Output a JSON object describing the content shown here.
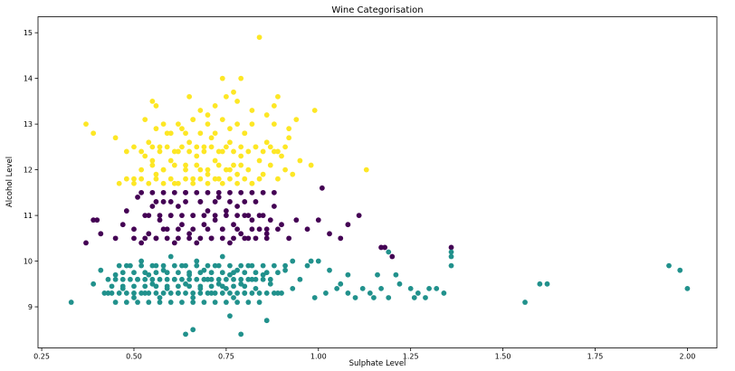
{
  "chart_data": {
    "type": "scatter",
    "title": "Wine Categorisation",
    "xlabel": "Sulphate Level",
    "ylabel": "Alcohol Level",
    "xlim": [
      0.24,
      2.08
    ],
    "ylim": [
      8.1,
      15.35
    ],
    "xticks": [
      0.25,
      0.5,
      0.75,
      1.0,
      1.25,
      1.5,
      1.75,
      2.0
    ],
    "xtick_labels": [
      "0.25",
      "0.50",
      "0.75",
      "1.00",
      "1.25",
      "1.50",
      "1.75",
      "2.00"
    ],
    "yticks": [
      9,
      10,
      11,
      12,
      13,
      14,
      15
    ],
    "ytick_labels": [
      "9",
      "10",
      "11",
      "12",
      "13",
      "14",
      "15"
    ],
    "grid": false,
    "legend": "none",
    "colors": {
      "cluster_high": "#fde725",
      "cluster_mid": "#440154",
      "cluster_low": "#21918c"
    },
    "series": [
      {
        "color": "#fde725",
        "x": [
          0.37,
          0.39,
          0.45,
          0.48,
          0.5,
          0.52,
          0.53,
          0.54,
          0.55,
          0.56,
          0.57,
          0.58,
          0.59,
          0.6,
          0.61,
          0.62,
          0.63,
          0.64,
          0.65,
          0.66,
          0.67,
          0.68,
          0.69,
          0.7,
          0.71,
          0.72,
          0.73,
          0.74,
          0.75,
          0.76,
          0.77,
          0.78,
          0.79,
          0.8,
          0.81,
          0.82,
          0.83,
          0.84,
          0.85,
          0.86,
          0.87,
          0.88,
          0.89,
          0.9,
          0.91,
          0.92,
          0.93,
          0.95,
          0.98,
          0.99,
          1.13,
          0.46,
          0.48,
          0.5,
          0.52,
          0.54,
          0.56,
          0.58,
          0.6,
          0.62,
          0.64,
          0.66,
          0.68,
          0.7,
          0.72,
          0.74,
          0.76,
          0.78,
          0.8,
          0.82,
          0.84,
          0.5,
          0.52,
          0.55,
          0.57,
          0.59,
          0.61,
          0.63,
          0.65,
          0.67,
          0.69,
          0.71,
          0.73,
          0.75,
          0.77,
          0.79,
          0.81,
          0.83,
          0.85,
          0.87,
          0.89,
          0.91,
          0.53,
          0.56,
          0.58,
          0.6,
          0.62,
          0.64,
          0.66,
          0.68,
          0.7,
          0.72,
          0.74,
          0.76,
          0.78,
          0.8,
          0.82,
          0.86,
          0.88,
          0.92,
          0.94,
          0.55,
          0.58,
          0.61,
          0.64,
          0.67,
          0.7,
          0.73,
          0.76,
          0.79,
          0.55,
          0.65,
          0.74,
          0.75,
          0.77,
          0.79,
          0.84,
          0.88,
          0.89,
          0.56,
          0.68,
          0.72,
          0.78,
          0.82,
          0.66,
          0.7
        ],
        "y": [
          13.0,
          12.8,
          12.7,
          12.4,
          11.8,
          12.0,
          12.3,
          12.6,
          12.2,
          11.9,
          12.5,
          12.0,
          12.8,
          12.2,
          11.7,
          12.4,
          12.9,
          12.1,
          12.6,
          11.8,
          12.3,
          12.0,
          12.5,
          11.9,
          12.7,
          12.2,
          11.8,
          12.4,
          12.0,
          12.6,
          12.1,
          11.9,
          12.3,
          12.8,
          12.0,
          11.7,
          12.5,
          12.2,
          11.9,
          12.6,
          12.1,
          12.4,
          11.8,
          12.3,
          12.0,
          12.7,
          11.9,
          12.2,
          12.1,
          13.3,
          12.0,
          11.7,
          11.8,
          11.7,
          11.8,
          11.7,
          11.8,
          11.7,
          11.8,
          11.7,
          11.8,
          11.7,
          11.8,
          11.7,
          11.8,
          11.7,
          11.8,
          11.7,
          11.8,
          11.7,
          11.8,
          12.5,
          12.4,
          12.5,
          12.4,
          12.5,
          12.4,
          12.5,
          12.4,
          12.5,
          12.4,
          12.5,
          12.4,
          12.5,
          12.4,
          12.5,
          12.4,
          12.5,
          12.4,
          12.5,
          12.4,
          12.5,
          13.1,
          12.9,
          13.0,
          12.8,
          13.0,
          12.8,
          13.1,
          12.8,
          13.0,
          12.8,
          13.1,
          12.9,
          13.0,
          12.8,
          13.0,
          13.2,
          13.0,
          12.9,
          13.1,
          12.1,
          12.0,
          12.1,
          12.0,
          12.1,
          12.0,
          12.1,
          12.0,
          12.1,
          13.5,
          13.6,
          14.0,
          13.6,
          13.7,
          14.0,
          14.9,
          13.4,
          13.6,
          13.4,
          13.3,
          13.4,
          13.5,
          13.3,
          13.1,
          13.2
        ]
      },
      {
        "color": "#440154",
        "x": [
          0.37,
          0.39,
          0.4,
          0.41,
          0.45,
          0.47,
          0.48,
          0.5,
          0.51,
          0.52,
          0.53,
          0.54,
          0.55,
          0.56,
          0.57,
          0.58,
          0.59,
          0.6,
          0.61,
          0.62,
          0.63,
          0.64,
          0.65,
          0.66,
          0.67,
          0.68,
          0.69,
          0.7,
          0.71,
          0.72,
          0.73,
          0.74,
          0.75,
          0.76,
          0.77,
          0.78,
          0.79,
          0.8,
          0.81,
          0.82,
          0.83,
          0.84,
          0.85,
          0.86,
          0.87,
          0.88,
          0.89,
          0.9,
          0.92,
          0.94,
          0.97,
          1.0,
          1.01,
          1.03,
          1.06,
          1.08,
          1.11,
          1.17,
          1.18,
          1.2,
          1.36,
          0.5,
          0.53,
          0.56,
          0.59,
          0.62,
          0.65,
          0.68,
          0.71,
          0.74,
          0.77,
          0.8,
          0.83,
          0.86,
          0.52,
          0.55,
          0.58,
          0.61,
          0.64,
          0.67,
          0.7,
          0.73,
          0.76,
          0.79,
          0.82,
          0.85,
          0.88,
          0.54,
          0.57,
          0.6,
          0.63,
          0.66,
          0.69,
          0.72,
          0.75,
          0.78,
          0.81,
          0.84,
          0.56,
          0.6,
          0.64,
          0.68,
          0.72,
          0.76,
          0.8,
          0.58,
          0.62,
          0.66,
          0.7,
          0.74,
          0.78,
          0.82,
          0.86
        ],
        "y": [
          10.4,
          10.9,
          10.9,
          10.6,
          10.5,
          10.8,
          11.1,
          10.7,
          11.4,
          10.4,
          11.0,
          10.6,
          11.2,
          10.5,
          10.9,
          11.3,
          10.7,
          11.0,
          10.4,
          11.2,
          10.8,
          11.5,
          10.6,
          11.0,
          10.4,
          11.3,
          10.8,
          11.1,
          10.5,
          10.9,
          11.4,
          10.7,
          11.1,
          10.4,
          10.8,
          11.2,
          10.6,
          11.0,
          10.5,
          10.9,
          11.3,
          10.7,
          11.0,
          10.6,
          10.9,
          11.2,
          10.7,
          10.8,
          10.5,
          10.9,
          10.7,
          10.9,
          11.6,
          10.6,
          10.5,
          10.8,
          11.0,
          10.3,
          10.3,
          10.1,
          10.3,
          10.5,
          10.5,
          10.5,
          10.5,
          10.5,
          10.5,
          10.5,
          10.5,
          10.5,
          10.5,
          10.5,
          10.5,
          10.5,
          11.5,
          11.5,
          11.5,
          11.5,
          11.5,
          11.5,
          11.5,
          11.5,
          11.5,
          11.5,
          11.5,
          11.5,
          11.5,
          11.0,
          11.0,
          11.0,
          11.0,
          11.0,
          11.0,
          11.0,
          11.0,
          11.0,
          11.0,
          11.0,
          11.3,
          11.3,
          11.3,
          11.3,
          11.3,
          11.3,
          11.3,
          10.7,
          10.7,
          10.7,
          10.7,
          10.7,
          10.7,
          10.7,
          10.7
        ]
      },
      {
        "color": "#21918c",
        "x": [
          0.33,
          0.39,
          0.41,
          0.43,
          0.45,
          0.47,
          0.48,
          0.5,
          0.51,
          0.52,
          0.53,
          0.54,
          0.55,
          0.56,
          0.57,
          0.58,
          0.59,
          0.6,
          0.61,
          0.62,
          0.63,
          0.64,
          0.65,
          0.66,
          0.67,
          0.68,
          0.69,
          0.7,
          0.71,
          0.72,
          0.73,
          0.74,
          0.75,
          0.76,
          0.77,
          0.78,
          0.79,
          0.8,
          0.81,
          0.82,
          0.83,
          0.85,
          0.87,
          0.89,
          0.91,
          0.93,
          0.95,
          0.97,
          0.99,
          1.0,
          1.02,
          1.03,
          1.05,
          1.06,
          1.08,
          1.1,
          1.12,
          1.14,
          1.15,
          1.17,
          1.19,
          1.22,
          1.25,
          1.27,
          1.29,
          1.32,
          1.34,
          1.36,
          1.56,
          1.6,
          1.62,
          1.95,
          1.98,
          2.0,
          0.42,
          0.44,
          0.46,
          0.48,
          0.5,
          0.52,
          0.54,
          0.56,
          0.58,
          0.6,
          0.62,
          0.64,
          0.66,
          0.68,
          0.7,
          0.72,
          0.74,
          0.76,
          0.78,
          0.8,
          0.82,
          0.84,
          0.86,
          0.88,
          0.9,
          0.43,
          0.45,
          0.47,
          0.49,
          0.51,
          0.53,
          0.55,
          0.57,
          0.59,
          0.61,
          0.63,
          0.65,
          0.67,
          0.69,
          0.71,
          0.73,
          0.75,
          0.77,
          0.79,
          0.81,
          0.83,
          0.85,
          0.87,
          0.46,
          0.49,
          0.52,
          0.55,
          0.58,
          0.61,
          0.64,
          0.67,
          0.7,
          0.73,
          0.76,
          0.79,
          0.82,
          0.85,
          0.88,
          0.91,
          0.45,
          0.48,
          0.51,
          0.54,
          0.57,
          0.6,
          0.63,
          0.66,
          0.69,
          0.72,
          0.75,
          0.78,
          0.81,
          0.84,
          0.44,
          0.47,
          0.5,
          0.53,
          0.56,
          0.59,
          0.62,
          0.65,
          0.68,
          0.71,
          0.74,
          0.77,
          0.8,
          0.47,
          0.5,
          0.53,
          0.56,
          0.59,
          0.62,
          0.65,
          0.68,
          0.71,
          0.74,
          0.77,
          0.8,
          0.83,
          0.86,
          0.89,
          0.64,
          0.66,
          0.76,
          0.79,
          0.86,
          0.93,
          0.98,
          1.08,
          1.16,
          1.19,
          1.21,
          1.26,
          1.3,
          1.36,
          1.36
        ],
        "y": [
          9.1,
          9.5,
          9.8,
          9.3,
          9.7,
          9.4,
          9.9,
          9.2,
          9.6,
          10.0,
          9.3,
          9.7,
          9.5,
          9.9,
          9.2,
          9.8,
          9.4,
          10.1,
          9.6,
          9.3,
          9.9,
          9.5,
          9.7,
          9.2,
          10.0,
          9.4,
          9.8,
          9.6,
          9.3,
          9.9,
          9.5,
          10.1,
          9.4,
          9.7,
          9.2,
          9.8,
          9.5,
          9.3,
          9.9,
          9.6,
          9.4,
          9.7,
          9.5,
          9.3,
          9.8,
          9.4,
          9.6,
          9.9,
          9.2,
          10.0,
          9.3,
          9.8,
          9.4,
          9.5,
          9.3,
          9.2,
          9.4,
          9.3,
          9.2,
          9.4,
          9.2,
          9.5,
          9.4,
          9.3,
          9.2,
          9.4,
          9.3,
          9.9,
          9.1,
          9.5,
          9.5,
          9.9,
          9.8,
          9.4,
          9.3,
          9.3,
          9.3,
          9.3,
          9.3,
          9.3,
          9.3,
          9.3,
          9.3,
          9.3,
          9.3,
          9.3,
          9.3,
          9.3,
          9.3,
          9.3,
          9.3,
          9.3,
          9.3,
          9.3,
          9.3,
          9.3,
          9.3,
          9.3,
          9.3,
          9.6,
          9.6,
          9.6,
          9.6,
          9.6,
          9.6,
          9.6,
          9.6,
          9.6,
          9.6,
          9.6,
          9.6,
          9.6,
          9.6,
          9.6,
          9.6,
          9.6,
          9.6,
          9.6,
          9.6,
          9.6,
          9.6,
          9.6,
          9.9,
          9.9,
          9.9,
          9.9,
          9.9,
          9.9,
          9.9,
          9.9,
          9.9,
          9.9,
          9.9,
          9.9,
          9.9,
          9.9,
          9.9,
          9.9,
          9.1,
          9.1,
          9.1,
          9.1,
          9.1,
          9.1,
          9.1,
          9.1,
          9.1,
          9.1,
          9.1,
          9.1,
          9.1,
          9.1,
          9.45,
          9.45,
          9.45,
          9.45,
          9.45,
          9.45,
          9.45,
          9.45,
          9.45,
          9.45,
          9.45,
          9.45,
          9.45,
          9.75,
          9.75,
          9.75,
          9.75,
          9.75,
          9.75,
          9.75,
          9.75,
          9.75,
          9.75,
          9.75,
          9.75,
          9.75,
          9.75,
          9.75,
          8.4,
          8.5,
          8.8,
          8.4,
          8.7,
          10.0,
          10.0,
          9.7,
          9.7,
          10.2,
          9.7,
          9.2,
          9.4,
          10.1,
          10.2
        ]
      }
    ]
  }
}
